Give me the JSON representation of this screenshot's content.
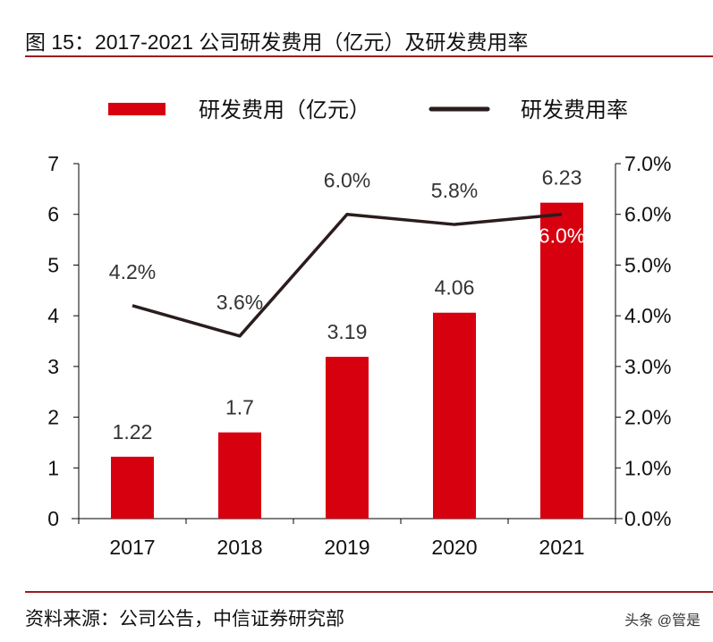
{
  "title": "图 15：2017-2021 公司研发费用（亿元）及研发费用率",
  "source": "资料来源：公司公告，中信证券研究部",
  "watermark": "头条 @管是",
  "chart_data": {
    "type": "bar+line",
    "categories": [
      "2017",
      "2018",
      "2019",
      "2020",
      "2021"
    ],
    "series": [
      {
        "name": "研发费用（亿元）",
        "type": "bar",
        "axis": "left",
        "color": "#d7000f",
        "values": [
          1.22,
          1.7,
          3.19,
          4.06,
          6.23
        ],
        "labels": [
          "1.22",
          "1.7",
          "3.19",
          "4.06",
          "6.23"
        ]
      },
      {
        "name": "研发费用率",
        "type": "line",
        "axis": "right",
        "color": "#2b1d1d",
        "values": [
          4.2,
          3.6,
          6.0,
          5.8,
          6.0
        ],
        "labels": [
          "4.2%",
          "3.6%",
          "6.0%",
          "5.8%",
          "6.0%"
        ]
      }
    ],
    "y_left": {
      "range": [
        0,
        7
      ],
      "ticks": [
        "0",
        "1",
        "2",
        "3",
        "4",
        "5",
        "6",
        "7"
      ]
    },
    "y_right": {
      "range": [
        0,
        7
      ],
      "ticks": [
        "0.0%",
        "1.0%",
        "2.0%",
        "3.0%",
        "4.0%",
        "5.0%",
        "6.0%",
        "7.0%"
      ]
    },
    "legend": "top",
    "grid": false
  }
}
